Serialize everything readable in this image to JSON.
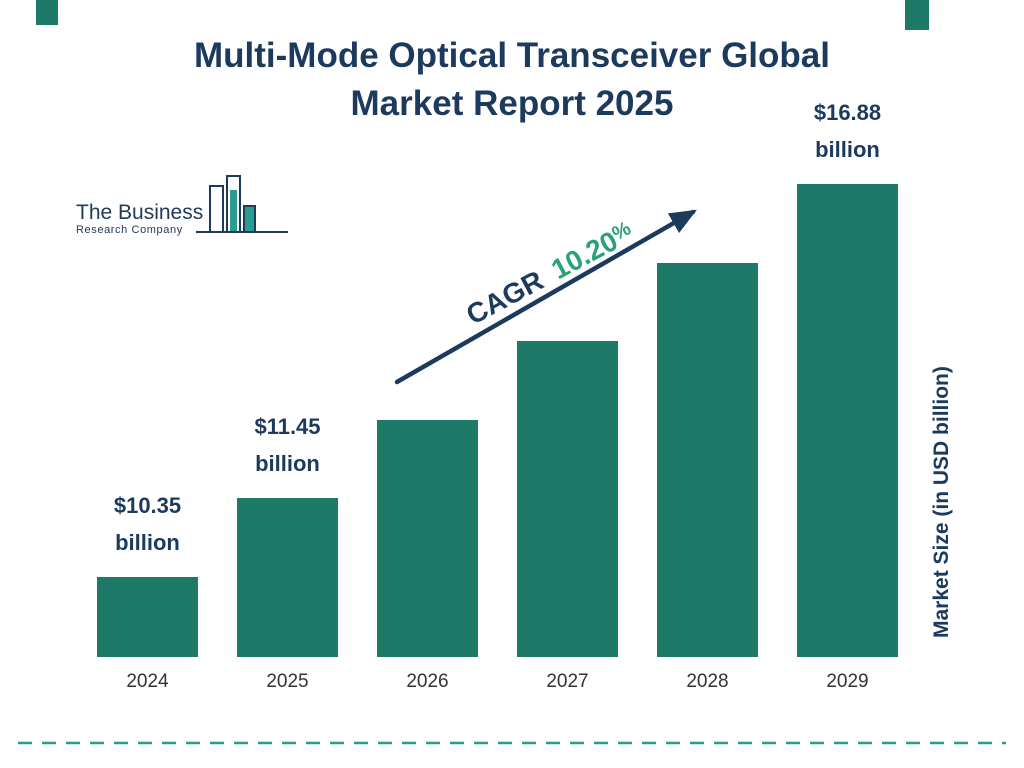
{
  "page": {
    "title_line1": "Multi-Mode Optical Transceiver Global",
    "title_line2": "Market Report 2025"
  },
  "logo": {
    "line1": "The Business",
    "line2": "Research Company"
  },
  "cagr": {
    "prefix": "CAGR",
    "value": "10.20",
    "percent": "%"
  },
  "colors": {
    "bar_teal": "#1e7a68",
    "title_navy": "#1c3a5e",
    "cagr_green": "#29a17a",
    "arrow_navy": "#1b3a5c",
    "dashed_teal": "#2a9d8f"
  },
  "chart_data": {
    "type": "bar",
    "title": "Multi-Mode Optical Transceiver Global Market Report 2025",
    "categories": [
      "2024",
      "2025",
      "2026",
      "2027",
      "2028",
      "2029"
    ],
    "values": [
      10.35,
      11.45,
      12.62,
      13.91,
      15.33,
      16.88
    ],
    "values_estimated": [
      false,
      false,
      true,
      true,
      true,
      false
    ],
    "unit": "USD billion",
    "ylabel": "Market Size (in USD billion)",
    "xlabel": "",
    "ylim": [
      0,
      18
    ],
    "gridlines": false,
    "legend": "none",
    "cagr_text": "CAGR 10.20%",
    "labels": [
      {
        "value_text": "$10.35",
        "unit_text": "billion",
        "show": true
      },
      {
        "value_text": "$11.45",
        "unit_text": "billion",
        "show": true
      },
      {
        "value_text": "",
        "unit_text": "",
        "show": false
      },
      {
        "value_text": "",
        "unit_text": "",
        "show": false
      },
      {
        "value_text": "",
        "unit_text": "",
        "show": false
      },
      {
        "value_text": "$16.88",
        "unit_text": "billion",
        "show": true
      }
    ]
  }
}
